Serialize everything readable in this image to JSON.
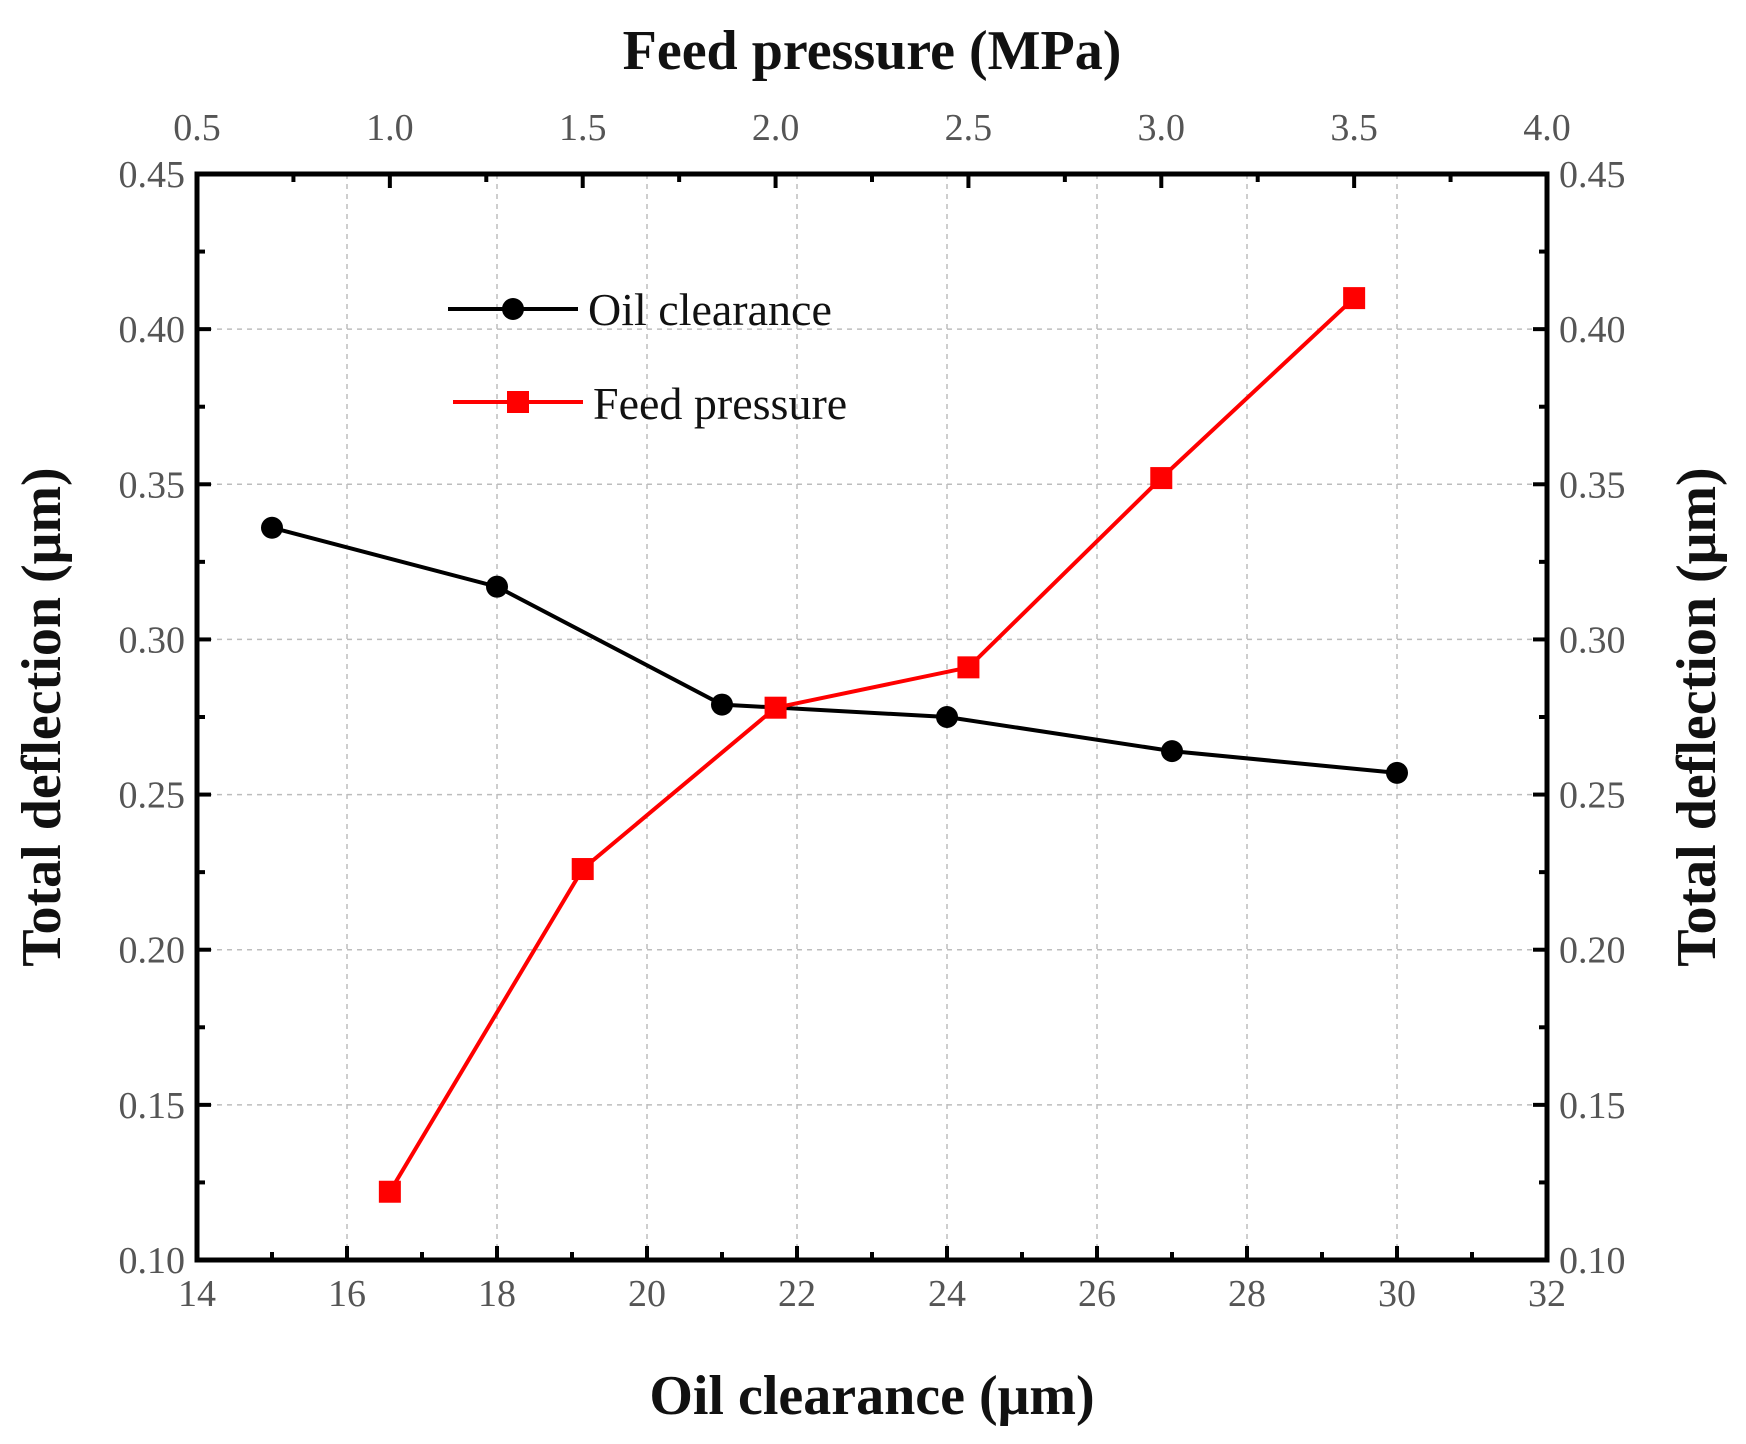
{
  "chart_data": {
    "type": "line",
    "title": "",
    "bottom_axis": {
      "label": "Oil clearance (μm)",
      "range": [
        14,
        32
      ],
      "ticks": [
        "14",
        "16",
        "18",
        "20",
        "22",
        "24",
        "26",
        "28",
        "30",
        "32"
      ]
    },
    "top_axis": {
      "label": "Feed pressure (MPa)",
      "range": [
        0.5,
        4.0
      ],
      "ticks": [
        "0.5",
        "1.0",
        "1.5",
        "2.0",
        "2.5",
        "3.0",
        "3.5",
        "4.0"
      ]
    },
    "left_axis": {
      "label": "Total deflection (μm)",
      "range": [
        0.1,
        0.45
      ],
      "ticks": [
        "0.10",
        "0.15",
        "0.20",
        "0.25",
        "0.30",
        "0.35",
        "0.40",
        "0.45"
      ]
    },
    "right_axis": {
      "label": "Total deflection (μm)",
      "range": [
        0.1,
        0.45
      ],
      "ticks": [
        "0.10",
        "0.15",
        "0.20",
        "0.25",
        "0.30",
        "0.35",
        "0.40",
        "0.45"
      ]
    },
    "grid": true,
    "legend_placement": "top-left",
    "series": [
      {
        "name": "Oil clearance",
        "axis": "bottom",
        "marker": "circle",
        "color": "#000000",
        "x": [
          15,
          18,
          21,
          24,
          27,
          30
        ],
        "y": [
          0.336,
          0.317,
          0.279,
          0.275,
          0.264,
          0.257
        ]
      },
      {
        "name": "Feed pressure",
        "axis": "top",
        "marker": "square",
        "color": "#ff0000",
        "x": [
          1.0,
          1.5,
          2.0,
          2.5,
          3.0,
          3.5
        ],
        "y": [
          0.122,
          0.226,
          0.278,
          0.291,
          0.352,
          0.41
        ]
      }
    ]
  }
}
